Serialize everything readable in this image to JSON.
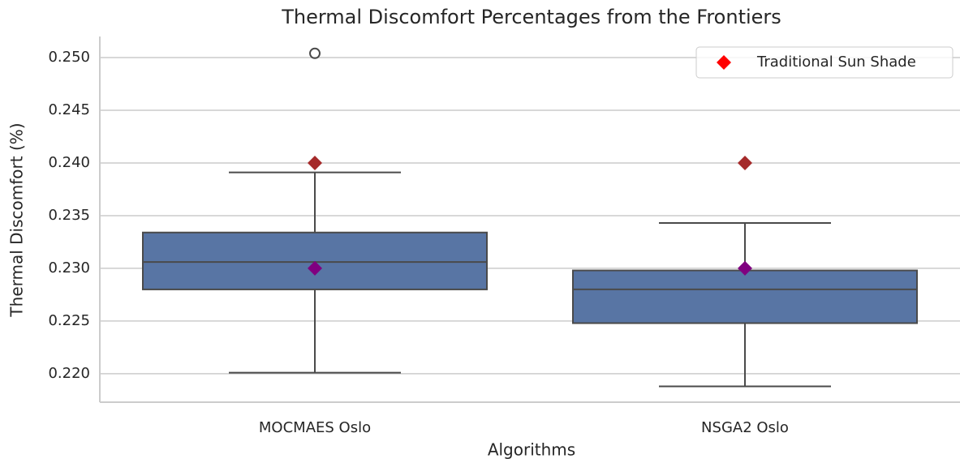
{
  "chart_data": {
    "type": "box",
    "title": "Thermal Discomfort Percentages from the Frontiers",
    "xlabel": "Algorithms",
    "ylabel": "Thermal Discomfort (%)",
    "categories": [
      "MOCMAES Oslo",
      "NSGA2 Oslo"
    ],
    "boxes": [
      {
        "min": 0.2201,
        "q1": 0.228,
        "median": 0.2306,
        "q3": 0.2334,
        "max": 0.2391,
        "outliers": [
          0.2504
        ]
      },
      {
        "min": 0.2188,
        "q1": 0.2248,
        "median": 0.228,
        "q3": 0.2298,
        "max": 0.2343,
        "outliers": []
      }
    ],
    "box_color": "#5875a4",
    "series": [
      {
        "name": "Traditional Sun Shade",
        "color": "#ff0000",
        "marker_color": "#a52a2a",
        "values": [
          0.24,
          0.24
        ]
      },
      {
        "color": "#800080",
        "values": [
          0.23,
          0.23
        ]
      }
    ],
    "ylim": [
      0.2173,
      0.252
    ],
    "yticks": [
      {
        "value": 0.22,
        "label": "0.220"
      },
      0.225,
      {
        "value": 0.23,
        "label": "0.230"
      },
      0.235,
      {
        "value": 0.24,
        "label": "0.240"
      },
      0.245,
      {
        "value": 0.25,
        "label": "0.250"
      }
    ],
    "grid": true,
    "legend": "upper right"
  }
}
